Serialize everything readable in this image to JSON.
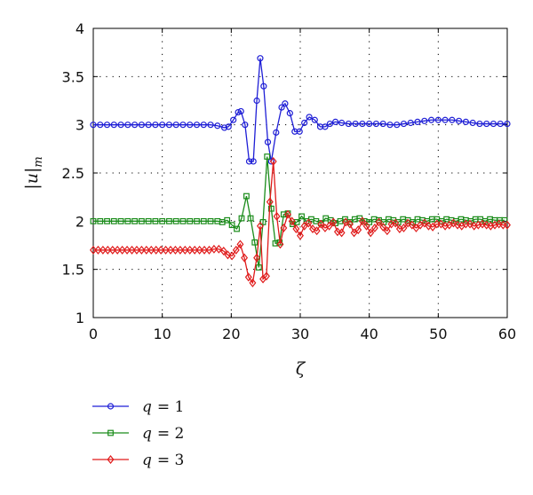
{
  "chart_data": {
    "type": "line",
    "title": "",
    "xlabel": "ζ",
    "ylabel": "|u|",
    "ylabel_sub": "m",
    "xlim": [
      0,
      60
    ],
    "ylim": [
      1,
      4
    ],
    "x_ticks": [
      "0",
      "10",
      "20",
      "30",
      "40",
      "50",
      "60"
    ],
    "y_ticks": [
      "1",
      "1.5",
      "2",
      "2.5",
      "3",
      "3.5",
      "4"
    ],
    "grid": true,
    "legend_position": "below",
    "series": [
      {
        "name": "q = 1",
        "var": "q",
        "eq": "= 1",
        "color": "#1f1fd6",
        "marker": "circle",
        "points": [
          [
            0,
            3.0
          ],
          [
            1,
            3.0
          ],
          [
            2,
            3.0
          ],
          [
            3,
            3.0
          ],
          [
            4,
            3.0
          ],
          [
            5,
            3.0
          ],
          [
            6,
            3.0
          ],
          [
            7,
            3.0
          ],
          [
            8,
            3.0
          ],
          [
            9,
            3.0
          ],
          [
            10,
            3.0
          ],
          [
            11,
            3.0
          ],
          [
            12,
            3.0
          ],
          [
            13,
            3.0
          ],
          [
            14,
            3.0
          ],
          [
            15,
            3.0
          ],
          [
            16,
            3.0
          ],
          [
            17,
            3.0
          ],
          [
            18,
            2.99
          ],
          [
            19,
            2.97
          ],
          [
            19.6,
            2.98
          ],
          [
            20.3,
            3.05
          ],
          [
            21,
            3.13
          ],
          [
            21.4,
            3.14
          ],
          [
            22,
            3.0
          ],
          [
            22.6,
            2.62
          ],
          [
            23.2,
            2.62
          ],
          [
            23.7,
            3.25
          ],
          [
            24.2,
            3.69
          ],
          [
            24.7,
            3.4
          ],
          [
            25.3,
            2.82
          ],
          [
            25.8,
            2.62
          ],
          [
            26.5,
            2.92
          ],
          [
            27.3,
            3.18
          ],
          [
            27.8,
            3.22
          ],
          [
            28.5,
            3.12
          ],
          [
            29.2,
            2.93
          ],
          [
            29.9,
            2.93
          ],
          [
            30.6,
            3.02
          ],
          [
            31.3,
            3.08
          ],
          [
            32.1,
            3.05
          ],
          [
            32.9,
            2.98
          ],
          [
            33.6,
            2.98
          ],
          [
            34.3,
            3.01
          ],
          [
            35.1,
            3.03
          ],
          [
            36,
            3.02
          ],
          [
            37,
            3.01
          ],
          [
            38,
            3.01
          ],
          [
            39,
            3.01
          ],
          [
            40,
            3.01
          ],
          [
            41,
            3.01
          ],
          [
            42,
            3.01
          ],
          [
            43,
            3.0
          ],
          [
            44,
            3.0
          ],
          [
            45,
            3.01
          ],
          [
            46,
            3.02
          ],
          [
            47,
            3.03
          ],
          [
            48,
            3.04
          ],
          [
            49,
            3.05
          ],
          [
            50,
            3.05
          ],
          [
            51,
            3.05
          ],
          [
            52,
            3.05
          ],
          [
            53,
            3.04
          ],
          [
            54,
            3.03
          ],
          [
            55,
            3.02
          ],
          [
            56,
            3.01
          ],
          [
            57,
            3.01
          ],
          [
            58,
            3.01
          ],
          [
            59,
            3.01
          ],
          [
            60,
            3.01
          ]
        ]
      },
      {
        "name": "q = 2",
        "var": "q",
        "eq": "= 2",
        "color": "#1a8c1a",
        "marker": "square",
        "points": [
          [
            0,
            2.0
          ],
          [
            1,
            2.0
          ],
          [
            2,
            2.0
          ],
          [
            3,
            2.0
          ],
          [
            4,
            2.0
          ],
          [
            5,
            2.0
          ],
          [
            6,
            2.0
          ],
          [
            7,
            2.0
          ],
          [
            8,
            2.0
          ],
          [
            9,
            2.0
          ],
          [
            10,
            2.0
          ],
          [
            11,
            2.0
          ],
          [
            12,
            2.0
          ],
          [
            13,
            2.0
          ],
          [
            14,
            2.0
          ],
          [
            15,
            2.0
          ],
          [
            16,
            2.0
          ],
          [
            17,
            2.0
          ],
          [
            18,
            2.0
          ],
          [
            18.7,
            1.99
          ],
          [
            19.4,
            2.01
          ],
          [
            20.1,
            1.96
          ],
          [
            20.8,
            1.92
          ],
          [
            21.5,
            2.03
          ],
          [
            22.2,
            2.26
          ],
          [
            22.8,
            2.03
          ],
          [
            23.4,
            1.78
          ],
          [
            24,
            1.52
          ],
          [
            24.6,
            1.99
          ],
          [
            25.2,
            2.67
          ],
          [
            25.8,
            2.13
          ],
          [
            26.4,
            1.77
          ],
          [
            27,
            1.78
          ],
          [
            27.6,
            2.07
          ],
          [
            28.2,
            2.08
          ],
          [
            28.9,
            1.97
          ],
          [
            29.5,
            1.99
          ],
          [
            30.2,
            2.05
          ],
          [
            30.9,
            2.0
          ],
          [
            31.6,
            2.02
          ],
          [
            32.3,
            2.0
          ],
          [
            33,
            1.98
          ],
          [
            33.7,
            2.03
          ],
          [
            34.4,
            2.01
          ],
          [
            35.1,
            1.98
          ],
          [
            35.8,
            2.0
          ],
          [
            36.5,
            2.02
          ],
          [
            37.2,
            1.99
          ],
          [
            37.9,
            2.02
          ],
          [
            38.6,
            2.03
          ],
          [
            39.3,
            2.0
          ],
          [
            40,
            1.99
          ],
          [
            40.7,
            2.02
          ],
          [
            41.4,
            2.01
          ],
          [
            42.1,
            1.99
          ],
          [
            42.8,
            2.02
          ],
          [
            43.5,
            2.01
          ],
          [
            44.2,
            1.99
          ],
          [
            44.9,
            2.02
          ],
          [
            45.6,
            2.01
          ],
          [
            46.3,
            1.99
          ],
          [
            47,
            2.02
          ],
          [
            47.7,
            2.01
          ],
          [
            48.4,
            2.0
          ],
          [
            49.1,
            2.02
          ],
          [
            49.8,
            2.02
          ],
          [
            50.5,
            2.0
          ],
          [
            51.2,
            2.02
          ],
          [
            51.9,
            2.01
          ],
          [
            52.6,
            2.0
          ],
          [
            53.3,
            2.02
          ],
          [
            54,
            2.01
          ],
          [
            54.7,
            2.0
          ],
          [
            55.4,
            2.02
          ],
          [
            56.1,
            2.02
          ],
          [
            56.8,
            2.0
          ],
          [
            57.5,
            2.02
          ],
          [
            58.2,
            2.01
          ],
          [
            58.9,
            2.01
          ],
          [
            59.6,
            2.01
          ]
        ]
      },
      {
        "name": "q = 3",
        "var": "q",
        "eq": "= 3",
        "color": "#e01b1b",
        "marker": "diamond",
        "points": [
          [
            0,
            1.7
          ],
          [
            0.7,
            1.7
          ],
          [
            1.4,
            1.7
          ],
          [
            2.1,
            1.7
          ],
          [
            2.8,
            1.7
          ],
          [
            3.5,
            1.7
          ],
          [
            4.2,
            1.7
          ],
          [
            4.9,
            1.7
          ],
          [
            5.6,
            1.7
          ],
          [
            6.3,
            1.7
          ],
          [
            7,
            1.7
          ],
          [
            7.7,
            1.7
          ],
          [
            8.4,
            1.7
          ],
          [
            9.1,
            1.7
          ],
          [
            9.8,
            1.7
          ],
          [
            10.5,
            1.7
          ],
          [
            11.2,
            1.7
          ],
          [
            11.9,
            1.7
          ],
          [
            12.6,
            1.7
          ],
          [
            13.3,
            1.7
          ],
          [
            14,
            1.7
          ],
          [
            14.7,
            1.7
          ],
          [
            15.4,
            1.7
          ],
          [
            16.1,
            1.7
          ],
          [
            16.8,
            1.7
          ],
          [
            17.5,
            1.71
          ],
          [
            18.2,
            1.71
          ],
          [
            18.9,
            1.69
          ],
          [
            19.5,
            1.65
          ],
          [
            20.1,
            1.64
          ],
          [
            20.7,
            1.7
          ],
          [
            21.3,
            1.76
          ],
          [
            21.9,
            1.62
          ],
          [
            22.5,
            1.42
          ],
          [
            23.1,
            1.36
          ],
          [
            23.7,
            1.62
          ],
          [
            24.2,
            1.95
          ],
          [
            24.6,
            1.4
          ],
          [
            25.1,
            1.43
          ],
          [
            25.6,
            2.2
          ],
          [
            26.1,
            2.62
          ],
          [
            26.6,
            2.05
          ],
          [
            27.1,
            1.76
          ],
          [
            27.6,
            1.93
          ],
          [
            28.2,
            2.07
          ],
          [
            28.8,
            2.0
          ],
          [
            29.4,
            1.92
          ],
          [
            30,
            1.85
          ],
          [
            30.6,
            1.95
          ],
          [
            31.2,
            1.98
          ],
          [
            31.8,
            1.92
          ],
          [
            32.4,
            1.9
          ],
          [
            33,
            1.97
          ],
          [
            33.6,
            1.93
          ],
          [
            34.2,
            1.95
          ],
          [
            34.8,
            1.99
          ],
          [
            35.4,
            1.89
          ],
          [
            36,
            1.88
          ],
          [
            36.6,
            1.99
          ],
          [
            37.2,
            1.97
          ],
          [
            37.8,
            1.88
          ],
          [
            38.4,
            1.91
          ],
          [
            39,
            2.0
          ],
          [
            39.6,
            1.95
          ],
          [
            40.2,
            1.88
          ],
          [
            40.8,
            1.93
          ],
          [
            41.4,
            1.99
          ],
          [
            42,
            1.94
          ],
          [
            42.6,
            1.9
          ],
          [
            43.2,
            1.97
          ],
          [
            43.8,
            1.98
          ],
          [
            44.4,
            1.92
          ],
          [
            45,
            1.93
          ],
          [
            45.6,
            1.98
          ],
          [
            46.2,
            1.96
          ],
          [
            46.8,
            1.93
          ],
          [
            47.4,
            1.96
          ],
          [
            48,
            1.98
          ],
          [
            48.6,
            1.95
          ],
          [
            49.2,
            1.94
          ],
          [
            49.8,
            1.97
          ],
          [
            50.4,
            1.97
          ],
          [
            51,
            1.95
          ],
          [
            51.6,
            1.96
          ],
          [
            52.2,
            1.98
          ],
          [
            52.8,
            1.96
          ],
          [
            53.4,
            1.95
          ],
          [
            54,
            1.97
          ],
          [
            54.6,
            1.97
          ],
          [
            55.2,
            1.95
          ],
          [
            55.8,
            1.96
          ],
          [
            56.4,
            1.97
          ],
          [
            57,
            1.96
          ],
          [
            57.6,
            1.95
          ],
          [
            58.2,
            1.96
          ],
          [
            58.8,
            1.97
          ],
          [
            59.4,
            1.96
          ],
          [
            60,
            1.96
          ]
        ]
      }
    ]
  }
}
